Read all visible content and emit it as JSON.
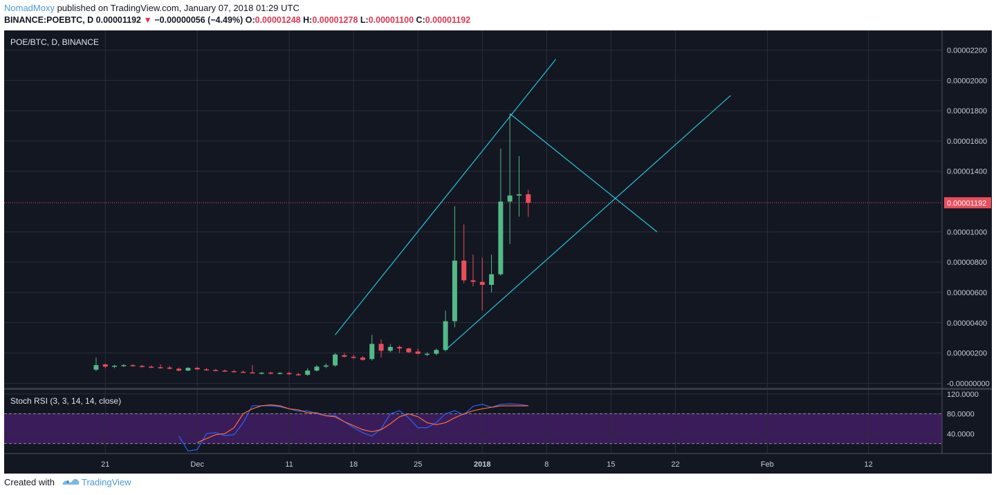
{
  "header": {
    "author": "NomadMoxy",
    "published_text": " published on TradingView.com, January 07, 2018 01:29 UTC"
  },
  "quote": {
    "symbol": "BINANCE:POEBTC, D",
    "last": "0.00001192",
    "down_arrow": "▼",
    "change": "−0.00000056 (−4.49%)",
    "o_label": "O:",
    "o": "0.00001248",
    "h_label": "H:",
    "h": "0.00001278",
    "l_label": "L:",
    "l": "0.00001100",
    "c_label": "C:",
    "c": "0.00001192"
  },
  "footer": {
    "created_with": "Created with",
    "brand": "TradingView"
  },
  "colors": {
    "background": "#131722",
    "grid": "#2a2e39",
    "up": "#53b987",
    "down": "#eb4d5c",
    "drawing": "#26c6da",
    "price_line": "#eb4d5c",
    "rsi_k": "#2962ff",
    "rsi_d": "#ff6d3a",
    "rsi_band": "#4a1f6e"
  },
  "chart_data": [
    {
      "type": "candlestick",
      "title": "POE/BTC, D, BINANCE",
      "last_price_label": "0.00001192",
      "y_ticks": [
        "0.00002200",
        "0.00002000",
        "0.00001800",
        "0.00001600",
        "0.00001400",
        "0.00001000",
        "0.00000800",
        "0.00000600",
        "0.00000400",
        "0.00000200",
        "-0.00000000"
      ],
      "y_tick_values": [
        2200,
        2000,
        1800,
        1600,
        1400,
        1000,
        800,
        600,
        400,
        200,
        0
      ],
      "y_unit_note": "values in satoshi (×1e-8 BTC)",
      "ylim": [
        -30,
        2330
      ],
      "x_ticks": [
        {
          "label": "21",
          "day": 0,
          "bold": false
        },
        {
          "label": "Dec",
          "day": 10,
          "bold": false
        },
        {
          "label": "11",
          "day": 20,
          "bold": false
        },
        {
          "label": "18",
          "day": 27,
          "bold": false
        },
        {
          "label": "25",
          "day": 34,
          "bold": false
        },
        {
          "label": "2018",
          "day": 41,
          "bold": true
        },
        {
          "label": "8",
          "day": 48,
          "bold": false
        },
        {
          "label": "15",
          "day": 55,
          "bold": false
        },
        {
          "label": "22",
          "day": 62,
          "bold": false
        },
        {
          "label": "Feb",
          "day": 72,
          "bold": false
        },
        {
          "label": "12",
          "day": 83,
          "bold": false
        }
      ],
      "xlim": [
        -11,
        91
      ],
      "candles": [
        {
          "d": -1,
          "o": 90,
          "h": 170,
          "l": 80,
          "c": 120
        },
        {
          "d": 0,
          "o": 125,
          "h": 130,
          "l": 100,
          "c": 110
        },
        {
          "d": 1,
          "o": 110,
          "h": 122,
          "l": 100,
          "c": 116
        },
        {
          "d": 2,
          "o": 116,
          "h": 126,
          "l": 108,
          "c": 120
        },
        {
          "d": 3,
          "o": 120,
          "h": 127,
          "l": 110,
          "c": 114
        },
        {
          "d": 4,
          "o": 114,
          "h": 122,
          "l": 105,
          "c": 110
        },
        {
          "d": 5,
          "o": 110,
          "h": 118,
          "l": 100,
          "c": 106
        },
        {
          "d": 6,
          "o": 106,
          "h": 125,
          "l": 98,
          "c": 104
        },
        {
          "d": 7,
          "o": 104,
          "h": 114,
          "l": 92,
          "c": 96
        },
        {
          "d": 8,
          "o": 96,
          "h": 104,
          "l": 80,
          "c": 84
        },
        {
          "d": 9,
          "o": 84,
          "h": 106,
          "l": 80,
          "c": 102
        },
        {
          "d": 10,
          "o": 102,
          "h": 110,
          "l": 88,
          "c": 92
        },
        {
          "d": 11,
          "o": 92,
          "h": 101,
          "l": 83,
          "c": 88
        },
        {
          "d": 12,
          "o": 88,
          "h": 95,
          "l": 80,
          "c": 84
        },
        {
          "d": 13,
          "o": 84,
          "h": 92,
          "l": 76,
          "c": 80
        },
        {
          "d": 14,
          "o": 80,
          "h": 88,
          "l": 74,
          "c": 76
        },
        {
          "d": 15,
          "o": 76,
          "h": 84,
          "l": 70,
          "c": 72
        },
        {
          "d": 16,
          "o": 72,
          "h": 120,
          "l": 64,
          "c": 66
        },
        {
          "d": 17,
          "o": 66,
          "h": 74,
          "l": 58,
          "c": 70
        },
        {
          "d": 18,
          "o": 70,
          "h": 76,
          "l": 60,
          "c": 66
        },
        {
          "d": 19,
          "o": 66,
          "h": 74,
          "l": 58,
          "c": 68
        },
        {
          "d": 20,
          "o": 68,
          "h": 76,
          "l": 56,
          "c": 60
        },
        {
          "d": 21,
          "o": 60,
          "h": 68,
          "l": 50,
          "c": 56
        },
        {
          "d": 22,
          "o": 56,
          "h": 100,
          "l": 50,
          "c": 84
        },
        {
          "d": 23,
          "o": 84,
          "h": 120,
          "l": 78,
          "c": 110
        },
        {
          "d": 24,
          "o": 110,
          "h": 130,
          "l": 100,
          "c": 118
        },
        {
          "d": 25,
          "o": 118,
          "h": 200,
          "l": 110,
          "c": 190
        },
        {
          "d": 26,
          "o": 185,
          "h": 200,
          "l": 170,
          "c": 175
        },
        {
          "d": 27,
          "o": 175,
          "h": 190,
          "l": 160,
          "c": 170
        },
        {
          "d": 28,
          "o": 170,
          "h": 180,
          "l": 150,
          "c": 155
        },
        {
          "d": 29,
          "o": 160,
          "h": 320,
          "l": 150,
          "c": 260
        },
        {
          "d": 30,
          "o": 260,
          "h": 290,
          "l": 170,
          "c": 215
        },
        {
          "d": 31,
          "o": 215,
          "h": 260,
          "l": 205,
          "c": 240
        },
        {
          "d": 32,
          "o": 240,
          "h": 250,
          "l": 200,
          "c": 230
        },
        {
          "d": 33,
          "o": 230,
          "h": 235,
          "l": 200,
          "c": 205
        },
        {
          "d": 34,
          "o": 210,
          "h": 230,
          "l": 190,
          "c": 195
        },
        {
          "d": 35,
          "o": 190,
          "h": 205,
          "l": 180,
          "c": 195
        },
        {
          "d": 36,
          "o": 195,
          "h": 230,
          "l": 185,
          "c": 220
        },
        {
          "d": 37,
          "o": 220,
          "h": 480,
          "l": 210,
          "c": 410
        },
        {
          "d": 38,
          "o": 410,
          "h": 1170,
          "l": 370,
          "c": 810
        },
        {
          "d": 39,
          "o": 810,
          "h": 1050,
          "l": 660,
          "c": 680
        },
        {
          "d": 40,
          "o": 680,
          "h": 850,
          "l": 640,
          "c": 670
        },
        {
          "d": 41,
          "o": 670,
          "h": 830,
          "l": 480,
          "c": 650
        },
        {
          "d": 42,
          "o": 650,
          "h": 850,
          "l": 600,
          "c": 720
        },
        {
          "d": 43,
          "o": 720,
          "h": 1550,
          "l": 710,
          "c": 1200
        },
        {
          "d": 44,
          "o": 1200,
          "h": 1780,
          "l": 920,
          "c": 1240
        },
        {
          "d": 45,
          "o": 1240,
          "h": 1500,
          "l": 1100,
          "c": 1248
        },
        {
          "d": 46,
          "o": 1248,
          "h": 1278,
          "l": 1100,
          "c": 1192
        }
      ],
      "drawings": [
        {
          "name": "channel-upper-line",
          "from": [
            25,
            320
          ],
          "to": [
            49,
            2140
          ]
        },
        {
          "name": "channel-lower-line",
          "from": [
            37,
            220
          ],
          "to": [
            68,
            1900
          ]
        },
        {
          "name": "resistance-line",
          "from": [
            44,
            1780
          ],
          "to": [
            60,
            1000
          ]
        }
      ]
    },
    {
      "type": "line",
      "title": "Stoch RSI (3, 3, 14, 14, close)",
      "y_ticks": [
        "120.0000",
        "80.0000",
        "40.0000"
      ],
      "y_tick_values": [
        120,
        80,
        40
      ],
      "ylim": [
        0,
        128
      ],
      "bands": [
        20,
        80
      ],
      "series": [
        {
          "name": "K",
          "color": "#2962ff",
          "x": [
            8,
            9,
            10,
            11,
            12,
            13,
            14,
            15,
            16,
            17,
            18,
            19,
            20,
            21,
            22,
            23,
            24,
            25,
            26,
            27,
            28,
            29,
            30,
            31,
            32,
            33,
            34,
            35,
            36,
            37,
            38,
            39,
            40,
            41,
            42,
            43,
            44,
            45,
            46
          ],
          "y": [
            35,
            5,
            8,
            40,
            42,
            36,
            38,
            62,
            96,
            96,
            96,
            94,
            90,
            85,
            86,
            80,
            76,
            76,
            64,
            52,
            42,
            35,
            50,
            80,
            86,
            72,
            52,
            52,
            62,
            80,
            86,
            78,
            95,
            99,
            93,
            99,
            100,
            99,
            96
          ]
        },
        {
          "name": "D",
          "color": "#ff6d3a",
          "x": [
            10,
            11,
            12,
            13,
            14,
            15,
            16,
            17,
            18,
            19,
            20,
            21,
            22,
            23,
            24,
            25,
            26,
            27,
            28,
            29,
            30,
            31,
            32,
            33,
            34,
            35,
            36,
            37,
            38,
            39,
            40,
            41,
            42,
            43,
            44,
            45,
            46
          ],
          "y": [
            22,
            30,
            38,
            40,
            52,
            80,
            90,
            96,
            98,
            96,
            90,
            88,
            82,
            82,
            76,
            74,
            64,
            56,
            48,
            44,
            48,
            60,
            74,
            80,
            74,
            62,
            58,
            62,
            72,
            80,
            86,
            90,
            93,
            96,
            96,
            96,
            96
          ]
        }
      ]
    }
  ]
}
